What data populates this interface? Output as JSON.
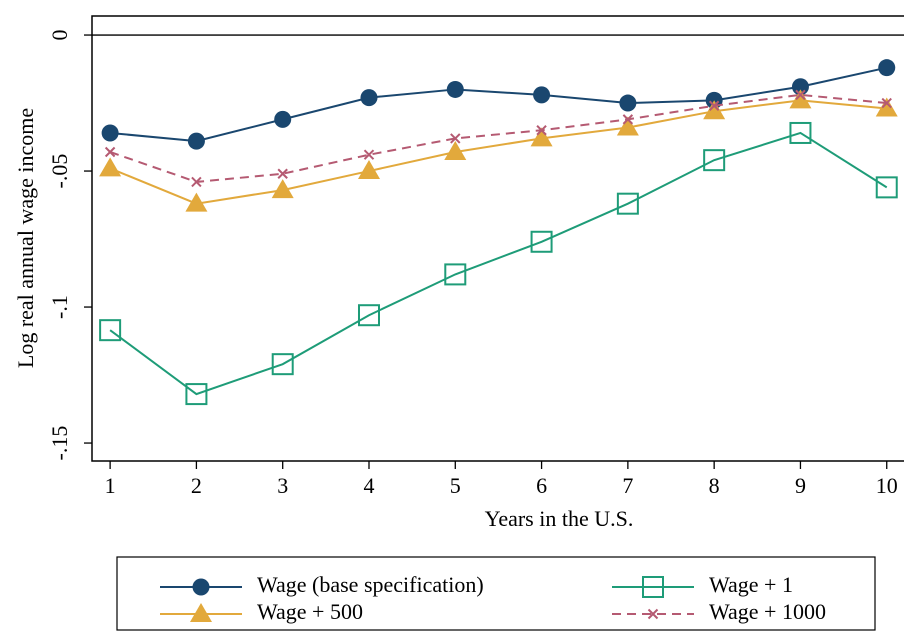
{
  "chart_data": {
    "type": "line",
    "x_label": "Years in the U.S.",
    "y_label": "Log real annual wage income",
    "x": [
      1,
      2,
      3,
      4,
      5,
      6,
      7,
      8,
      9,
      10
    ],
    "xlim": [
      0.79,
      10.2
    ],
    "xticks": [
      1,
      2,
      3,
      4,
      5,
      6,
      7,
      8,
      9,
      10
    ],
    "ylim": [
      -0.1566,
      0.007
    ],
    "yticks": [
      {
        "value": -0.15,
        "label": "-.15"
      },
      {
        "value": -0.1,
        "label": "-.1"
      },
      {
        "value": -0.05,
        "label": "-.05"
      },
      0
    ],
    "series": [
      {
        "name": "Wage (base specification)",
        "color": "#1a476f",
        "marker": "circle",
        "values": [
          -0.036,
          -0.039,
          -0.031,
          -0.023,
          -0.02,
          -0.022,
          -0.025,
          -0.024,
          -0.019,
          -0.012
        ]
      },
      {
        "name": "Wage + 500",
        "color": "#e2a93c",
        "marker": "triangle",
        "values": [
          -0.049,
          -0.062,
          -0.057,
          -0.05,
          -0.043,
          -0.038,
          -0.034,
          -0.028,
          -0.024,
          -0.027
        ]
      },
      {
        "name": "Wage + 1",
        "color": "#1e9c78",
        "marker": "square",
        "values": [
          -0.1085,
          -0.132,
          -0.121,
          -0.103,
          -0.088,
          -0.076,
          -0.062,
          -0.046,
          -0.036,
          -0.056
        ]
      },
      {
        "name": "Wage + 1000",
        "color": "#b55a72",
        "marker": "x",
        "dash": true,
        "values": [
          -0.043,
          -0.054,
          -0.051,
          -0.044,
          -0.038,
          -0.035,
          -0.031,
          -0.026,
          -0.022,
          -0.025
        ]
      }
    ]
  }
}
